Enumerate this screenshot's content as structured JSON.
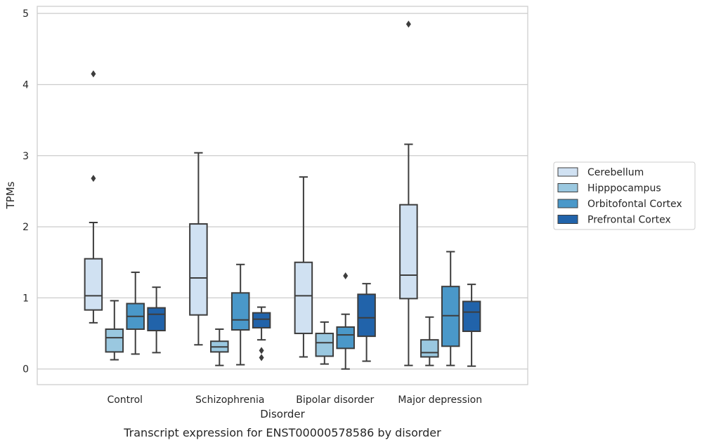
{
  "chart_data": {
    "type": "boxplot",
    "caption": "Transcript expression for ENST00000578586 by disorder",
    "xlabel": "Disorder",
    "ylabel": "TPMs",
    "ylim": [
      -0.22,
      5.1
    ],
    "yticks": [
      0,
      1,
      2,
      3,
      4,
      5
    ],
    "grid": "horizontal",
    "legend_position": "right",
    "categories": [
      "Control",
      "Schizophrenia",
      "Bipolar disorder",
      "Major depression"
    ],
    "series": [
      {
        "name": "Cerebellum",
        "color": "#d0e1f2",
        "boxes": [
          {
            "whislo": 0.65,
            "q1": 0.83,
            "med": 1.03,
            "q3": 1.55,
            "whishi": 2.06,
            "fliers": [
              2.68,
              4.15
            ]
          },
          {
            "whislo": 0.34,
            "q1": 0.76,
            "med": 1.28,
            "q3": 2.04,
            "whishi": 3.04,
            "fliers": []
          },
          {
            "whislo": 0.17,
            "q1": 0.5,
            "med": 1.03,
            "q3": 1.5,
            "whishi": 2.7,
            "fliers": []
          },
          {
            "whislo": 0.05,
            "q1": 0.99,
            "med": 1.32,
            "q3": 2.31,
            "whishi": 3.16,
            "fliers": [
              4.85
            ]
          }
        ]
      },
      {
        "name": "Hipppocampus",
        "color": "#9ac8e0",
        "boxes": [
          {
            "whislo": 0.13,
            "q1": 0.24,
            "med": 0.44,
            "q3": 0.56,
            "whishi": 0.96,
            "fliers": []
          },
          {
            "whislo": 0.05,
            "q1": 0.24,
            "med": 0.31,
            "q3": 0.39,
            "whishi": 0.56,
            "fliers": []
          },
          {
            "whislo": 0.07,
            "q1": 0.18,
            "med": 0.37,
            "q3": 0.5,
            "whishi": 0.66,
            "fliers": []
          },
          {
            "whislo": 0.05,
            "q1": 0.17,
            "med": 0.23,
            "q3": 0.41,
            "whishi": 0.73,
            "fliers": []
          }
        ]
      },
      {
        "name": "Orbitofontal Cortex",
        "color": "#4a98c9",
        "boxes": [
          {
            "whislo": 0.21,
            "q1": 0.56,
            "med": 0.74,
            "q3": 0.92,
            "whishi": 1.36,
            "fliers": []
          },
          {
            "whislo": 0.06,
            "q1": 0.55,
            "med": 0.69,
            "q3": 1.07,
            "whishi": 1.47,
            "fliers": []
          },
          {
            "whislo": 0.0,
            "q1": 0.29,
            "med": 0.48,
            "q3": 0.59,
            "whishi": 0.77,
            "fliers": [
              1.31
            ]
          },
          {
            "whislo": 0.05,
            "q1": 0.32,
            "med": 0.75,
            "q3": 1.16,
            "whishi": 1.65,
            "fliers": []
          }
        ]
      },
      {
        "name": "Prefrontal Cortex",
        "color": "#2163aa",
        "boxes": [
          {
            "whislo": 0.23,
            "q1": 0.54,
            "med": 0.77,
            "q3": 0.86,
            "whishi": 1.15,
            "fliers": []
          },
          {
            "whislo": 0.41,
            "q1": 0.58,
            "med": 0.7,
            "q3": 0.79,
            "whishi": 0.87,
            "fliers": [
              0.26,
              0.16
            ]
          },
          {
            "whislo": 0.11,
            "q1": 0.46,
            "med": 0.72,
            "q3": 1.05,
            "whishi": 1.2,
            "fliers": []
          },
          {
            "whislo": 0.04,
            "q1": 0.53,
            "med": 0.8,
            "q3": 0.95,
            "whishi": 1.19,
            "fliers": []
          }
        ]
      }
    ]
  }
}
